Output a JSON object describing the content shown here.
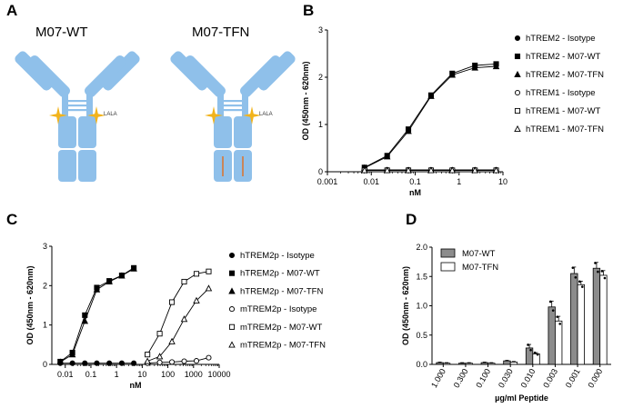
{
  "panels": {
    "A": "A",
    "B": "B",
    "C": "C",
    "D": "D"
  },
  "antibodies": {
    "left": {
      "name": "M07-WT",
      "mutation": "LALA"
    },
    "right": {
      "name": "M07-TFN",
      "mutation": "LALA"
    }
  },
  "colors": {
    "antibody": "#8fc0ea",
    "antibody_dark": "#6ea7d6",
    "lala_star": "#f2b31b",
    "tfn_mark": "#c9865a",
    "bar_wt": "#8c8c8c",
    "bar_tfn": "#ffffff"
  },
  "chart_data": [
    {
      "panel": "B",
      "type": "scatter",
      "xscale": "log",
      "xlim": [
        0.001,
        10
      ],
      "ylim": [
        0,
        3
      ],
      "xticks": [
        "0.001",
        "0.01",
        "0.1",
        "1",
        "10"
      ],
      "yticks": [
        "0",
        "1",
        "2",
        "3"
      ],
      "xlabel": "nM",
      "ylabel": "OD (450nm - 620nm)",
      "legend_position": "right",
      "x": [
        0.007,
        0.023,
        0.07,
        0.23,
        0.7,
        2.3,
        7
      ],
      "series": [
        {
          "name": "hTREM2 - Isotype",
          "marker": "filled-circle",
          "values": [
            0.04,
            0.04,
            0.04,
            0.04,
            0.04,
            0.04,
            0.04
          ]
        },
        {
          "name": "hTREM2 - M07-WT",
          "marker": "filled-square",
          "values": [
            0.09,
            0.34,
            0.9,
            1.62,
            2.08,
            2.25,
            2.28
          ]
        },
        {
          "name": "hTREM2 - M07-TFN",
          "marker": "filled-triangle",
          "values": [
            0.08,
            0.32,
            0.86,
            1.6,
            2.05,
            2.2,
            2.23
          ]
        },
        {
          "name": "hTREM1 - Isotype",
          "marker": "open-circle",
          "values": [
            0.03,
            0.03,
            0.03,
            0.03,
            0.03,
            0.03,
            0.03
          ]
        },
        {
          "name": "hTREM1 - M07-WT",
          "marker": "open-square",
          "values": [
            0.03,
            0.03,
            0.03,
            0.03,
            0.03,
            0.03,
            0.03
          ]
        },
        {
          "name": "hTREM1 - M07-TFN",
          "marker": "open-triangle",
          "values": [
            0.03,
            0.03,
            0.03,
            0.03,
            0.03,
            0.03,
            0.03
          ]
        }
      ]
    },
    {
      "panel": "C",
      "type": "scatter",
      "xscale": "log",
      "xlim": [
        0.003,
        10000
      ],
      "ylim": [
        0,
        3
      ],
      "xticks": [
        "0.01",
        "0.1",
        "1",
        "10",
        "100",
        "1000",
        "10000"
      ],
      "yticks": [
        "0",
        "1",
        "2",
        "3"
      ],
      "xlabel": "nM",
      "ylabel": "OD (450nm - 620nm)",
      "legend_position": "right",
      "series": [
        {
          "name": "hTREM2p - Isotype",
          "marker": "filled-circle",
          "x": [
            0.0064,
            0.019,
            0.058,
            0.17,
            0.52,
            1.6,
            4.7
          ],
          "values": [
            0.03,
            0.03,
            0.03,
            0.03,
            0.03,
            0.03,
            0.03
          ]
        },
        {
          "name": "hTREM2p - M07-WT",
          "marker": "filled-square",
          "x": [
            0.0064,
            0.019,
            0.058,
            0.17,
            0.52,
            1.6,
            4.7
          ],
          "values": [
            0.07,
            0.3,
            1.25,
            1.95,
            2.12,
            2.26,
            2.45
          ]
        },
        {
          "name": "hTREM2p - M07-TFN",
          "marker": "filled-triangle",
          "x": [
            0.0064,
            0.019,
            0.058,
            0.17,
            0.52,
            1.6,
            4.7
          ],
          "values": [
            0.06,
            0.25,
            1.1,
            1.9,
            2.1,
            2.25,
            2.43
          ]
        },
        {
          "name": "mTREM2p - Isotype",
          "marker": "open-circle",
          "x": [
            16,
            48,
            144,
            432,
            1300,
            3900
          ],
          "values": [
            0.03,
            0.05,
            0.06,
            0.08,
            0.09,
            0.17
          ]
        },
        {
          "name": "mTREM2p - M07-WT",
          "marker": "open-square",
          "x": [
            16,
            48,
            144,
            432,
            1300,
            3900
          ],
          "values": [
            0.25,
            0.78,
            1.58,
            2.1,
            2.3,
            2.36
          ]
        },
        {
          "name": "mTREM2p - M07-TFN",
          "marker": "open-triangle",
          "x": [
            16,
            48,
            144,
            432,
            1300,
            3900
          ],
          "values": [
            0.08,
            0.2,
            0.58,
            1.15,
            1.62,
            1.93
          ]
        }
      ]
    },
    {
      "panel": "D",
      "type": "bar",
      "ylim": [
        0,
        2
      ],
      "yticks": [
        "0.0",
        "0.5",
        "1.0",
        "1.5",
        "2.0"
      ],
      "xlabel": "µg/ml Peptide",
      "ylabel": "OD (450nm - 620nm)",
      "legend_position": "top-left",
      "categories": [
        "1.000",
        "0.300",
        "0.100",
        "0.030",
        "0.010",
        "0.003",
        "0.001",
        "0.000"
      ],
      "series": [
        {
          "name": "M07-WT",
          "values": [
            0.03,
            0.02,
            0.03,
            0.06,
            0.28,
            0.98,
            1.55,
            1.64
          ],
          "errors": [
            0.01,
            0.01,
            0.01,
            0.01,
            0.06,
            0.1,
            0.11,
            0.1
          ]
        },
        {
          "name": "M07-TFN",
          "values": [
            0.02,
            0.02,
            0.02,
            0.04,
            0.18,
            0.74,
            1.36,
            1.52
          ],
          "errors": [
            0.01,
            0.01,
            0.01,
            0.01,
            0.02,
            0.08,
            0.06,
            0.08
          ]
        }
      ]
    }
  ]
}
